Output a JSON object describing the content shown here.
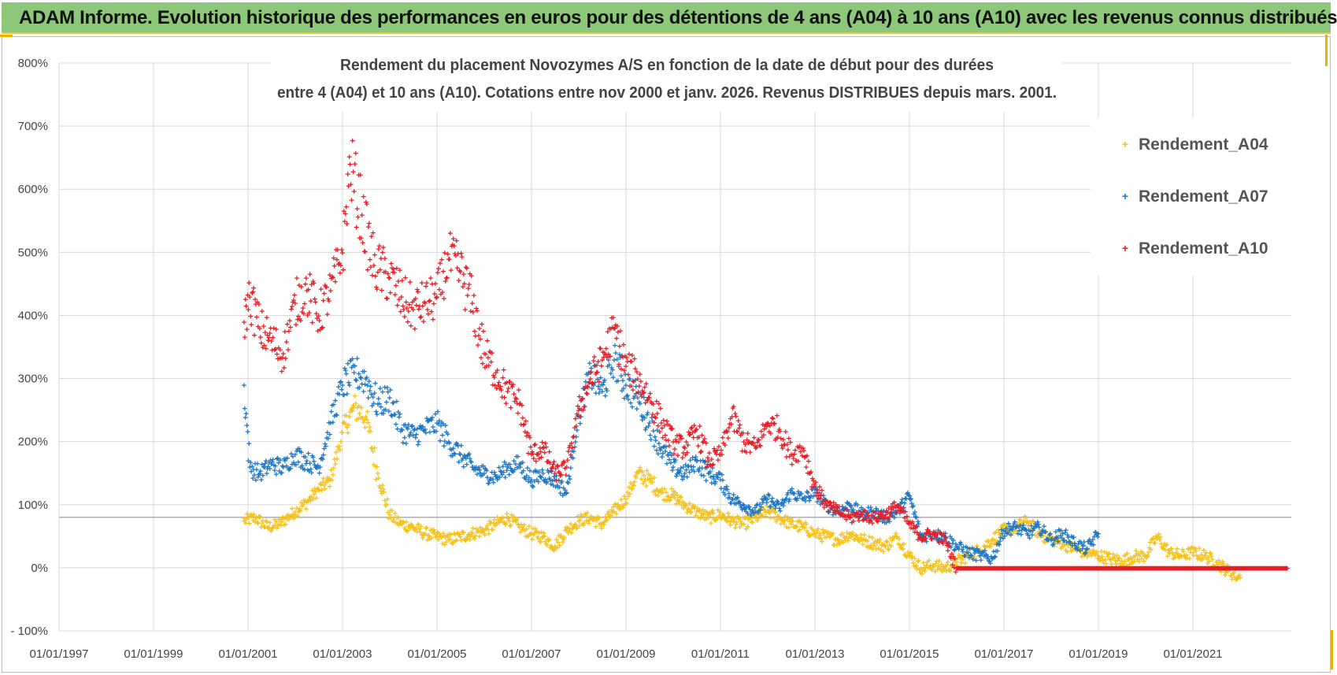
{
  "banner": {
    "title": "ADAM Informe. Evolution historique des performances en euros pour des détentions de 4 ans (A04) à 10 ans (A10) avec les revenus connus distribués"
  },
  "chart_data": {
    "type": "scatter",
    "title_line1": "Rendement du placement Novozymes A/S en fonction de la date de début pour des durées",
    "title_line2": "entre 4 (A04) et 10 ans (A10). Cotations entre nov 2000 et janv. 2026. Revenus DISTRIBUES depuis mars. 2001.",
    "xlabel": "",
    "ylabel": "",
    "x_tick_labels": [
      "01/01/1997",
      "01/01/1999",
      "01/01/2001",
      "01/01/2003",
      "01/01/2005",
      "01/01/2007",
      "01/01/2009",
      "01/01/2011",
      "01/01/2013",
      "01/01/2015",
      "01/01/2017",
      "01/01/2019",
      "01/01/2021"
    ],
    "x_range": [
      "1997-01-01",
      "2023-02-01"
    ],
    "y_tick_labels": [
      "800%",
      "700%",
      "600%",
      "500%",
      "400%",
      "300%",
      "200%",
      "100%",
      "0%",
      "- 100%"
    ],
    "ylim": [
      -100,
      800
    ],
    "y_unit": "%",
    "reference_line_y": 80,
    "grid": "vertical and horizontal",
    "legend_position": "top-right",
    "series": [
      {
        "name": "Rendement_A04",
        "color": "#f5c21a",
        "marker": "+",
        "points": [
          [
            "2000-12-01",
            75
          ],
          [
            "2001-03-01",
            80
          ],
          [
            "2001-06-01",
            65
          ],
          [
            "2001-09-01",
            70
          ],
          [
            "2002-01-01",
            90
          ],
          [
            "2002-04-01",
            105
          ],
          [
            "2002-07-01",
            125
          ],
          [
            "2002-10-01",
            140
          ],
          [
            "2003-01-01",
            215
          ],
          [
            "2003-04-01",
            255
          ],
          [
            "2003-07-01",
            240
          ],
          [
            "2003-10-01",
            150
          ],
          [
            "2004-01-01",
            85
          ],
          [
            "2004-04-01",
            70
          ],
          [
            "2004-07-01",
            65
          ],
          [
            "2004-10-01",
            55
          ],
          [
            "2005-01-01",
            50
          ],
          [
            "2005-04-01",
            45
          ],
          [
            "2005-07-01",
            50
          ],
          [
            "2005-10-01",
            55
          ],
          [
            "2006-01-01",
            60
          ],
          [
            "2006-04-01",
            70
          ],
          [
            "2006-07-01",
            80
          ],
          [
            "2006-10-01",
            65
          ],
          [
            "2007-01-01",
            55
          ],
          [
            "2007-04-01",
            50
          ],
          [
            "2007-07-01",
            35
          ],
          [
            "2007-10-01",
            60
          ],
          [
            "2008-01-01",
            75
          ],
          [
            "2008-04-01",
            80
          ],
          [
            "2008-07-01",
            70
          ],
          [
            "2008-10-01",
            90
          ],
          [
            "2009-01-01",
            110
          ],
          [
            "2009-04-01",
            150
          ],
          [
            "2009-07-01",
            140
          ],
          [
            "2009-10-01",
            120
          ],
          [
            "2010-01-01",
            115
          ],
          [
            "2010-04-01",
            100
          ],
          [
            "2010-07-01",
            90
          ],
          [
            "2010-10-01",
            80
          ],
          [
            "2011-01-01",
            85
          ],
          [
            "2011-04-01",
            75
          ],
          [
            "2011-07-01",
            70
          ],
          [
            "2011-10-01",
            80
          ],
          [
            "2012-01-01",
            90
          ],
          [
            "2012-04-01",
            80
          ],
          [
            "2012-07-01",
            70
          ],
          [
            "2012-10-01",
            65
          ],
          [
            "2013-01-01",
            55
          ],
          [
            "2013-04-01",
            50
          ],
          [
            "2013-07-01",
            45
          ],
          [
            "2013-10-01",
            55
          ],
          [
            "2014-01-01",
            45
          ],
          [
            "2014-04-01",
            40
          ],
          [
            "2014-07-01",
            35
          ],
          [
            "2014-10-01",
            50
          ],
          [
            "2015-01-01",
            20
          ],
          [
            "2015-04-01",
            0
          ],
          [
            "2015-07-01",
            5
          ],
          [
            "2015-10-01",
            0
          ],
          [
            "2016-01-01",
            10
          ],
          [
            "2016-04-01",
            20
          ],
          [
            "2016-07-01",
            30
          ],
          [
            "2016-10-01",
            45
          ],
          [
            "2017-01-01",
            60
          ],
          [
            "2017-04-01",
            65
          ],
          [
            "2017-07-01",
            75
          ],
          [
            "2017-10-01",
            55
          ],
          [
            "2018-01-01",
            45
          ],
          [
            "2018-04-01",
            40
          ],
          [
            "2018-07-01",
            30
          ],
          [
            "2018-10-01",
            25
          ],
          [
            "2019-01-01",
            20
          ],
          [
            "2019-04-01",
            15
          ],
          [
            "2019-07-01",
            12
          ],
          [
            "2019-10-01",
            18
          ],
          [
            "2020-01-01",
            20
          ],
          [
            "2020-04-01",
            50
          ],
          [
            "2020-07-01",
            25
          ],
          [
            "2020-10-01",
            20
          ],
          [
            "2021-01-01",
            25
          ],
          [
            "2021-04-01",
            20
          ],
          [
            "2021-07-01",
            10
          ],
          [
            "2021-10-01",
            -5
          ],
          [
            "2022-01-01",
            -15
          ]
        ]
      },
      {
        "name": "Rendement_A07",
        "color": "#1f77c4",
        "marker": "+",
        "points": [
          [
            "2000-12-01",
            290
          ],
          [
            "2001-01-15",
            160
          ],
          [
            "2001-04-01",
            150
          ],
          [
            "2001-07-01",
            165
          ],
          [
            "2001-10-01",
            160
          ],
          [
            "2002-01-01",
            180
          ],
          [
            "2002-04-01",
            170
          ],
          [
            "2002-07-01",
            160
          ],
          [
            "2002-10-01",
            230
          ],
          [
            "2003-01-01",
            290
          ],
          [
            "2003-04-01",
            310
          ],
          [
            "2003-07-01",
            300
          ],
          [
            "2003-10-01",
            260
          ],
          [
            "2004-01-01",
            270
          ],
          [
            "2004-04-01",
            220
          ],
          [
            "2004-07-01",
            210
          ],
          [
            "2004-10-01",
            220
          ],
          [
            "2005-01-01",
            230
          ],
          [
            "2005-04-01",
            200
          ],
          [
            "2005-07-01",
            180
          ],
          [
            "2005-10-01",
            160
          ],
          [
            "2006-01-01",
            150
          ],
          [
            "2006-04-01",
            145
          ],
          [
            "2006-07-01",
            160
          ],
          [
            "2006-10-01",
            165
          ],
          [
            "2007-01-01",
            140
          ],
          [
            "2007-04-01",
            150
          ],
          [
            "2007-07-01",
            140
          ],
          [
            "2007-10-01",
            120
          ],
          [
            "2008-01-01",
            240
          ],
          [
            "2008-04-01",
            310
          ],
          [
            "2008-07-01",
            280
          ],
          [
            "2008-10-01",
            330
          ],
          [
            "2009-01-01",
            290
          ],
          [
            "2009-04-01",
            270
          ],
          [
            "2009-07-01",
            230
          ],
          [
            "2009-10-01",
            190
          ],
          [
            "2010-01-01",
            160
          ],
          [
            "2010-04-01",
            150
          ],
          [
            "2010-07-01",
            170
          ],
          [
            "2010-10-01",
            150
          ],
          [
            "2011-01-01",
            140
          ],
          [
            "2011-04-01",
            110
          ],
          [
            "2011-07-01",
            100
          ],
          [
            "2011-10-01",
            90
          ],
          [
            "2012-01-01",
            110
          ],
          [
            "2012-04-01",
            95
          ],
          [
            "2012-07-01",
            120
          ],
          [
            "2012-10-01",
            110
          ],
          [
            "2013-01-01",
            120
          ],
          [
            "2013-04-01",
            100
          ],
          [
            "2013-07-01",
            90
          ],
          [
            "2013-10-01",
            100
          ],
          [
            "2014-01-01",
            85
          ],
          [
            "2014-04-01",
            90
          ],
          [
            "2014-07-01",
            80
          ],
          [
            "2014-10-01",
            90
          ],
          [
            "2015-01-01",
            115
          ],
          [
            "2015-04-01",
            50
          ],
          [
            "2015-07-01",
            55
          ],
          [
            "2015-10-01",
            50
          ],
          [
            "2016-01-01",
            35
          ],
          [
            "2016-04-01",
            25
          ],
          [
            "2016-07-01",
            20
          ],
          [
            "2016-10-01",
            15
          ],
          [
            "2017-01-01",
            60
          ],
          [
            "2017-04-01",
            65
          ],
          [
            "2017-07-01",
            55
          ],
          [
            "2017-10-01",
            65
          ],
          [
            "2018-01-01",
            45
          ],
          [
            "2018-04-01",
            55
          ],
          [
            "2018-07-01",
            40
          ],
          [
            "2018-10-01",
            30
          ],
          [
            "2019-01-01",
            55
          ]
        ]
      },
      {
        "name": "Rendement_A10",
        "color": "#e81c24",
        "marker": "+",
        "points": [
          [
            "2000-12-01",
            390
          ],
          [
            "2001-01-15",
            430
          ],
          [
            "2001-04-01",
            380
          ],
          [
            "2001-07-01",
            360
          ],
          [
            "2001-10-01",
            340
          ],
          [
            "2002-01-01",
            420
          ],
          [
            "2002-04-01",
            440
          ],
          [
            "2002-07-01",
            400
          ],
          [
            "2002-10-01",
            440
          ],
          [
            "2003-01-01",
            500
          ],
          [
            "2003-03-01",
            640
          ],
          [
            "2003-06-01",
            560
          ],
          [
            "2003-09-01",
            480
          ],
          [
            "2004-01-01",
            460
          ],
          [
            "2004-04-01",
            430
          ],
          [
            "2004-07-01",
            410
          ],
          [
            "2004-10-01",
            420
          ],
          [
            "2005-01-01",
            430
          ],
          [
            "2005-04-01",
            490
          ],
          [
            "2005-07-01",
            470
          ],
          [
            "2005-10-01",
            420
          ],
          [
            "2006-01-01",
            340
          ],
          [
            "2006-04-01",
            310
          ],
          [
            "2006-07-01",
            280
          ],
          [
            "2006-10-01",
            260
          ],
          [
            "2007-01-01",
            180
          ],
          [
            "2007-04-01",
            190
          ],
          [
            "2007-07-01",
            150
          ],
          [
            "2007-10-01",
            160
          ],
          [
            "2008-01-01",
            250
          ],
          [
            "2008-04-01",
            300
          ],
          [
            "2008-07-01",
            330
          ],
          [
            "2008-10-01",
            380
          ],
          [
            "2009-01-01",
            320
          ],
          [
            "2009-04-01",
            300
          ],
          [
            "2009-07-01",
            270
          ],
          [
            "2009-10-01",
            230
          ],
          [
            "2010-01-01",
            200
          ],
          [
            "2010-04-01",
            190
          ],
          [
            "2010-07-01",
            220
          ],
          [
            "2010-10-01",
            170
          ],
          [
            "2011-01-01",
            180
          ],
          [
            "2011-04-01",
            240
          ],
          [
            "2011-07-01",
            200
          ],
          [
            "2011-10-01",
            190
          ],
          [
            "2012-01-01",
            230
          ],
          [
            "2012-04-01",
            220
          ],
          [
            "2012-07-01",
            180
          ],
          [
            "2012-10-01",
            190
          ],
          [
            "2013-01-01",
            130
          ],
          [
            "2013-04-01",
            100
          ],
          [
            "2013-07-01",
            90
          ],
          [
            "2013-10-01",
            80
          ],
          [
            "2014-01-01",
            85
          ],
          [
            "2014-04-01",
            80
          ],
          [
            "2014-07-01",
            85
          ],
          [
            "2014-10-01",
            100
          ],
          [
            "2015-01-01",
            70
          ],
          [
            "2015-04-01",
            50
          ],
          [
            "2015-07-01",
            55
          ],
          [
            "2015-10-01",
            45
          ],
          [
            "2016-01-01",
            0
          ],
          [
            "2016-07-01",
            0
          ],
          [
            "2017-01-01",
            0
          ],
          [
            "2017-07-01",
            0
          ],
          [
            "2018-01-01",
            0
          ],
          [
            "2018-07-01",
            0
          ],
          [
            "2019-01-01",
            0
          ],
          [
            "2019-07-01",
            0
          ],
          [
            "2020-01-01",
            0
          ],
          [
            "2020-07-01",
            0
          ],
          [
            "2021-01-01",
            0
          ],
          [
            "2021-07-01",
            0
          ],
          [
            "2022-01-01",
            0
          ],
          [
            "2022-07-01",
            0
          ],
          [
            "2023-01-01",
            0
          ]
        ]
      }
    ]
  }
}
